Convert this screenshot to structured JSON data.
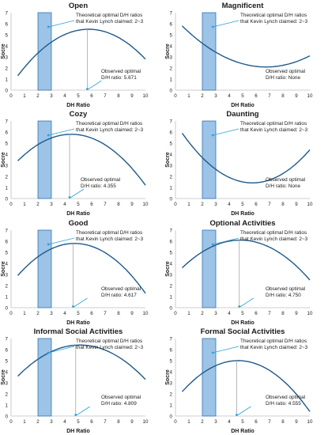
{
  "chart_data": [
    {
      "type": "line",
      "title": "Open",
      "xlabel": "DH Ratio",
      "ylabel": "Socre",
      "xlim": [
        0,
        10
      ],
      "ylim": [
        0,
        7
      ],
      "x_ticks": [
        "0",
        "1",
        "2",
        "3",
        "4",
        "5",
        "6",
        "7",
        "8",
        "9",
        "10"
      ],
      "y_ticks": [
        "0",
        "1",
        "2",
        "3",
        "4",
        "5",
        "6",
        "7"
      ],
      "band": [
        2,
        3
      ],
      "curve_points": [
        [
          0.5,
          1.3
        ],
        [
          5.671,
          5.5
        ],
        [
          10,
          2.8
        ]
      ],
      "optimum_x": 5.671,
      "theory_text": [
        "Theoretical optimal D/H ratios",
        "that Kevin Lynch claimed: 2~3"
      ],
      "observed_text": [
        "Observed optimal",
        "D/H ratio: 5.671"
      ]
    },
    {
      "type": "line",
      "title": "Magnificent",
      "xlabel": "DH Ratio",
      "ylabel": "Socre",
      "xlim": [
        0,
        10
      ],
      "ylim": [
        0,
        7
      ],
      "x_ticks": [
        "0",
        "1",
        "2",
        "3",
        "4",
        "5",
        "6",
        "7",
        "8",
        "9",
        "10"
      ],
      "y_ticks": [
        "0",
        "1",
        "2",
        "3",
        "4",
        "5",
        "6",
        "7"
      ],
      "band": [
        2,
        3
      ],
      "curve_points": [
        [
          0.5,
          5.8
        ],
        [
          6.5,
          2.1
        ],
        [
          10,
          3.1
        ]
      ],
      "optimum_x": null,
      "theory_text": [
        "Theoretical optimal D/H ratios",
        "that Kevin Lynch claimed: 2~3"
      ],
      "observed_text": [
        "Observed optimal",
        "D/H ratio: None"
      ]
    },
    {
      "type": "line",
      "title": "Cozy",
      "xlabel": "DH Ratio",
      "ylabel": "Socre",
      "xlim": [
        0,
        10
      ],
      "ylim": [
        0,
        7
      ],
      "x_ticks": [
        "0",
        "1",
        "2",
        "3",
        "4",
        "5",
        "6",
        "7",
        "8",
        "9",
        "10"
      ],
      "y_ticks": [
        "0",
        "1",
        "2",
        "3",
        "4",
        "5",
        "6",
        "7"
      ],
      "band": [
        2,
        3
      ],
      "curve_points": [
        [
          0.5,
          3.4
        ],
        [
          4.355,
          5.8
        ],
        [
          10,
          1.2
        ]
      ],
      "optimum_x": 4.355,
      "theory_text": [
        "Theoretical optimal D/H ratios",
        "that Kevin Lynch claimed: 2~3"
      ],
      "observed_text": [
        "Observed optimal",
        "D/H ratio: 4.355"
      ]
    },
    {
      "type": "line",
      "title": "Daunting",
      "xlabel": "DH Ratio",
      "ylabel": "Socre",
      "xlim": [
        0,
        10
      ],
      "ylim": [
        0,
        7
      ],
      "x_ticks": [
        "0",
        "1",
        "2",
        "3",
        "4",
        "5",
        "6",
        "7",
        "8",
        "9",
        "10"
      ],
      "y_ticks": [
        "0",
        "1",
        "2",
        "3",
        "4",
        "5",
        "6",
        "7"
      ],
      "band": [
        2,
        3
      ],
      "curve_points": [
        [
          0.5,
          5.9
        ],
        [
          5,
          1.5
        ],
        [
          10,
          4.4
        ]
      ],
      "optimum_x": null,
      "theory_text": [
        "Theoretical optimal D/H ratios",
        "that Kevin Lynch claimed: 2~3"
      ],
      "observed_text": [
        "Observed optimal",
        "D/H ratio: None"
      ]
    },
    {
      "type": "line",
      "title": "Good",
      "xlabel": "DH Ratio",
      "ylabel": "Socre",
      "xlim": [
        0,
        10
      ],
      "ylim": [
        0,
        7
      ],
      "x_ticks": [
        "0",
        "1",
        "2",
        "3",
        "4",
        "5",
        "6",
        "7",
        "8",
        "9",
        "10"
      ],
      "y_ticks": [
        "0",
        "1",
        "2",
        "3",
        "4",
        "5",
        "6",
        "7"
      ],
      "band": [
        2,
        3
      ],
      "curve_points": [
        [
          0.5,
          2.9
        ],
        [
          4.617,
          5.8
        ],
        [
          10,
          1.3
        ]
      ],
      "optimum_x": 4.617,
      "theory_text": [
        "Theoretical optimal D/H ratios",
        "that Kevin Lynch claimed: 2~3"
      ],
      "observed_text": [
        "Observed optimal",
        "D/H ratio: 4.617"
      ]
    },
    {
      "type": "line",
      "title": "Optional Activities",
      "xlabel": "DH Ratio",
      "ylabel": "Socre",
      "xlim": [
        0,
        10
      ],
      "ylim": [
        0,
        7
      ],
      "x_ticks": [
        "0",
        "1",
        "2",
        "3",
        "4",
        "5",
        "6",
        "7",
        "8",
        "9",
        "10"
      ],
      "y_ticks": [
        "0",
        "1",
        "2",
        "3",
        "4",
        "5",
        "6",
        "7"
      ],
      "band": [
        2,
        3
      ],
      "curve_points": [
        [
          0.5,
          3.6
        ],
        [
          4.75,
          6.1
        ],
        [
          10,
          2.5
        ]
      ],
      "optimum_x": 4.75,
      "theory_text": [
        "Theoretical optimal D/H ratios",
        "that Kevin Lynch claimed: 2~3"
      ],
      "observed_text": [
        "Observed optimal",
        "D/H ratio: 4.750"
      ]
    },
    {
      "type": "line",
      "title": "Informal Social Activities",
      "xlabel": "DH Ratio",
      "ylabel": "Socre",
      "xlim": [
        0,
        10
      ],
      "ylim": [
        0,
        7
      ],
      "x_ticks": [
        "0",
        "1",
        "2",
        "3",
        "4",
        "5",
        "6",
        "7",
        "8",
        "9",
        "10"
      ],
      "y_ticks": [
        "0",
        "1",
        "2",
        "3",
        "4",
        "5",
        "6",
        "7"
      ],
      "band": [
        2,
        3
      ],
      "curve_points": [
        [
          0.5,
          3.6
        ],
        [
          4.809,
          6.4
        ],
        [
          10,
          3.3
        ]
      ],
      "optimum_x": 4.809,
      "theory_text": [
        "Theoretical optimal D/H ratios",
        "that Kevin Lynch claimed: 2~3"
      ],
      "observed_text": [
        "Observed optimal",
        "D/H ratio: 4.809"
      ]
    },
    {
      "type": "line",
      "title": "Formal Social Activities",
      "xlabel": "DH Ratio",
      "ylabel": "Socre",
      "xlim": [
        0,
        10
      ],
      "ylim": [
        0,
        7
      ],
      "x_ticks": [
        "0",
        "1",
        "2",
        "3",
        "4",
        "5",
        "6",
        "7",
        "8",
        "9",
        "10"
      ],
      "y_ticks": [
        "0",
        "1",
        "2",
        "3",
        "4",
        "5",
        "6",
        "7"
      ],
      "band": [
        2,
        3
      ],
      "curve_points": [
        [
          0.5,
          2.2
        ],
        [
          4.555,
          5.0
        ],
        [
          10,
          0.4
        ]
      ],
      "optimum_x": 4.555,
      "theory_text": [
        "Theoretical optimal D/H ratios",
        "that Kevin Lynch claimed: 2~3"
      ],
      "observed_text": [
        "Observed optimal",
        "D/H ratio: 4.555"
      ]
    }
  ],
  "colors": {
    "band_fill": "#9dc3e6",
    "band_stroke": "#2e75b6",
    "curve": "#1f5a8c",
    "guide": "#a6a6a6",
    "arrow": "#2e9fd8",
    "axis": "#bfbfbf",
    "text": "#1a1a1a"
  }
}
